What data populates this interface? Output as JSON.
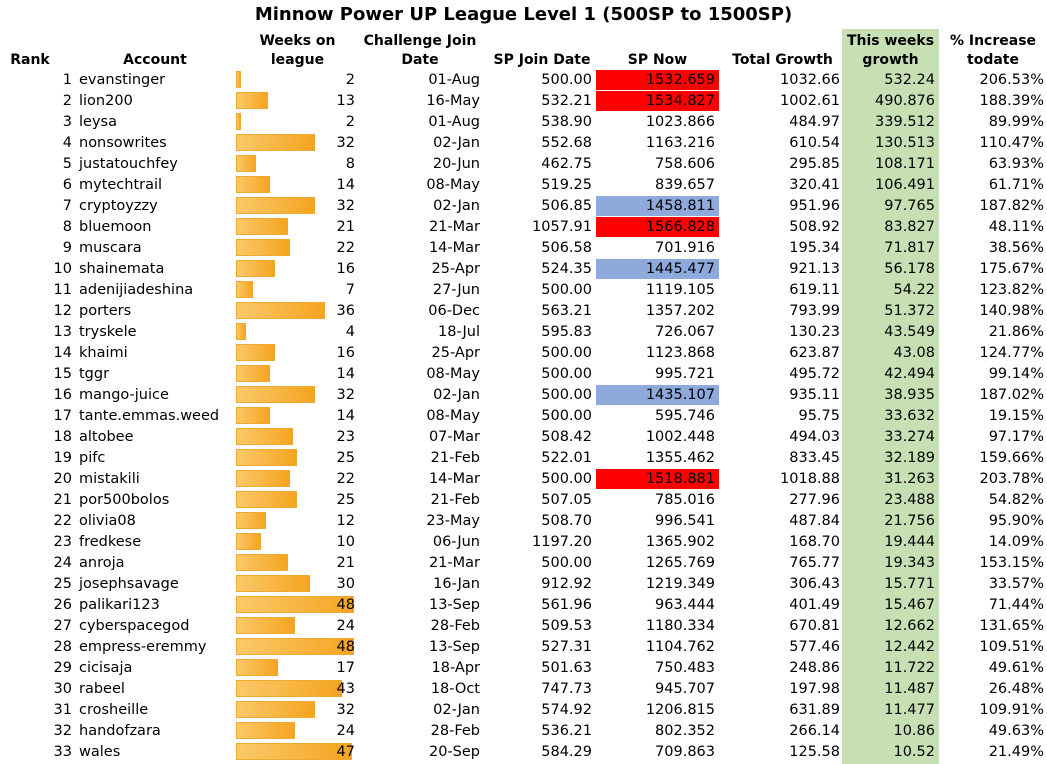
{
  "title": "Minnow Power UP League Level 1 (500SP to 1500SP)",
  "headers": {
    "rank": "Rank",
    "account": "Account",
    "weeks_on_league": [
      "Weeks on",
      "league"
    ],
    "challenge_join_date": [
      "Challenge Join",
      "Date"
    ],
    "sp_join_date": "SP Join Date",
    "sp_now": "SP Now",
    "total_growth": "Total Growth",
    "this_weeks_growth": [
      "This weeks",
      "growth"
    ],
    "pct_increase": [
      "% Increase",
      "todate"
    ]
  },
  "colors": {
    "highlight_red": "#ff0000",
    "highlight_blue": "#8ea9db",
    "growth_column": "#c6e0b4",
    "bar": "#f5a41f"
  },
  "max_weeks": 48,
  "rows": [
    {
      "rank": "1",
      "account": "evanstinger",
      "weeks": "2",
      "join_date": "01-Aug",
      "sp_join": "500.00",
      "sp_now": "1532.659",
      "sp_now_highlight": "red",
      "total_growth": "1032.66",
      "week_growth": "532.24",
      "pct": "206.53%"
    },
    {
      "rank": "2",
      "account": "lion200",
      "weeks": "13",
      "join_date": "16-May",
      "sp_join": "532.21",
      "sp_now": "1534.827",
      "sp_now_highlight": "red",
      "total_growth": "1002.61",
      "week_growth": "490.876",
      "pct": "188.39%"
    },
    {
      "rank": "3",
      "account": "leysa",
      "weeks": "2",
      "join_date": "01-Aug",
      "sp_join": "538.90",
      "sp_now": "1023.866",
      "sp_now_highlight": "",
      "total_growth": "484.97",
      "week_growth": "339.512",
      "pct": "89.99%"
    },
    {
      "rank": "4",
      "account": "nonsowrites",
      "weeks": "32",
      "join_date": "02-Jan",
      "sp_join": "552.68",
      "sp_now": "1163.216",
      "sp_now_highlight": "",
      "total_growth": "610.54",
      "week_growth": "130.513",
      "pct": "110.47%"
    },
    {
      "rank": "5",
      "account": "justatouchfey",
      "weeks": "8",
      "join_date": "20-Jun",
      "sp_join": "462.75",
      "sp_now": "758.606",
      "sp_now_highlight": "",
      "total_growth": "295.85",
      "week_growth": "108.171",
      "pct": "63.93%"
    },
    {
      "rank": "6",
      "account": "mytechtrail",
      "weeks": "14",
      "join_date": "08-May",
      "sp_join": "519.25",
      "sp_now": "839.657",
      "sp_now_highlight": "",
      "total_growth": "320.41",
      "week_growth": "106.491",
      "pct": "61.71%"
    },
    {
      "rank": "7",
      "account": "cryptoyzzy",
      "weeks": "32",
      "join_date": "02-Jan",
      "sp_join": "506.85",
      "sp_now": "1458.811",
      "sp_now_highlight": "blue",
      "total_growth": "951.96",
      "week_growth": "97.765",
      "pct": "187.82%"
    },
    {
      "rank": "8",
      "account": "bluemoon",
      "weeks": "21",
      "join_date": "21-Mar",
      "sp_join": "1057.91",
      "sp_now": "1566.828",
      "sp_now_highlight": "red",
      "total_growth": "508.92",
      "week_growth": "83.827",
      "pct": "48.11%"
    },
    {
      "rank": "9",
      "account": "muscara",
      "weeks": "22",
      "join_date": "14-Mar",
      "sp_join": "506.58",
      "sp_now": "701.916",
      "sp_now_highlight": "",
      "total_growth": "195.34",
      "week_growth": "71.817",
      "pct": "38.56%"
    },
    {
      "rank": "10",
      "account": "shainemata",
      "weeks": "16",
      "join_date": "25-Apr",
      "sp_join": "524.35",
      "sp_now": "1445.477",
      "sp_now_highlight": "blue",
      "total_growth": "921.13",
      "week_growth": "56.178",
      "pct": "175.67%"
    },
    {
      "rank": "11",
      "account": "adenijiadeshina",
      "weeks": "7",
      "join_date": "27-Jun",
      "sp_join": "500.00",
      "sp_now": "1119.105",
      "sp_now_highlight": "",
      "total_growth": "619.11",
      "week_growth": "54.22",
      "pct": "123.82%"
    },
    {
      "rank": "12",
      "account": "porters",
      "weeks": "36",
      "join_date": "06-Dec",
      "sp_join": "563.21",
      "sp_now": "1357.202",
      "sp_now_highlight": "",
      "total_growth": "793.99",
      "week_growth": "51.372",
      "pct": "140.98%"
    },
    {
      "rank": "13",
      "account": "tryskele",
      "weeks": "4",
      "join_date": "18-Jul",
      "sp_join": "595.83",
      "sp_now": "726.067",
      "sp_now_highlight": "",
      "total_growth": "130.23",
      "week_growth": "43.549",
      "pct": "21.86%"
    },
    {
      "rank": "14",
      "account": "khaimi",
      "weeks": "16",
      "join_date": "25-Apr",
      "sp_join": "500.00",
      "sp_now": "1123.868",
      "sp_now_highlight": "",
      "total_growth": "623.87",
      "week_growth": "43.08",
      "pct": "124.77%"
    },
    {
      "rank": "15",
      "account": "tggr",
      "weeks": "14",
      "join_date": "08-May",
      "sp_join": "500.00",
      "sp_now": "995.721",
      "sp_now_highlight": "",
      "total_growth": "495.72",
      "week_growth": "42.494",
      "pct": "99.14%"
    },
    {
      "rank": "16",
      "account": "mango-juice",
      "weeks": "32",
      "join_date": "02-Jan",
      "sp_join": "500.00",
      "sp_now": "1435.107",
      "sp_now_highlight": "blue",
      "total_growth": "935.11",
      "week_growth": "38.935",
      "pct": "187.02%"
    },
    {
      "rank": "17",
      "account": "tante.emmas.weed",
      "weeks": "14",
      "join_date": "08-May",
      "sp_join": "500.00",
      "sp_now": "595.746",
      "sp_now_highlight": "",
      "total_growth": "95.75",
      "week_growth": "33.632",
      "pct": "19.15%"
    },
    {
      "rank": "18",
      "account": "altobee",
      "weeks": "23",
      "join_date": "07-Mar",
      "sp_join": "508.42",
      "sp_now": "1002.448",
      "sp_now_highlight": "",
      "total_growth": "494.03",
      "week_growth": "33.274",
      "pct": "97.17%"
    },
    {
      "rank": "19",
      "account": "pifc",
      "weeks": "25",
      "join_date": "21-Feb",
      "sp_join": "522.01",
      "sp_now": "1355.462",
      "sp_now_highlight": "",
      "total_growth": "833.45",
      "week_growth": "32.189",
      "pct": "159.66%"
    },
    {
      "rank": "20",
      "account": "mistakili",
      "weeks": "22",
      "join_date": "14-Mar",
      "sp_join": "500.00",
      "sp_now": "1518.881",
      "sp_now_highlight": "red",
      "total_growth": "1018.88",
      "week_growth": "31.263",
      "pct": "203.78%"
    },
    {
      "rank": "21",
      "account": "por500bolos",
      "weeks": "25",
      "join_date": "21-Feb",
      "sp_join": "507.05",
      "sp_now": "785.016",
      "sp_now_highlight": "",
      "total_growth": "277.96",
      "week_growth": "23.488",
      "pct": "54.82%"
    },
    {
      "rank": "22",
      "account": "olivia08",
      "weeks": "12",
      "join_date": "23-May",
      "sp_join": "508.70",
      "sp_now": "996.541",
      "sp_now_highlight": "",
      "total_growth": "487.84",
      "week_growth": "21.756",
      "pct": "95.90%"
    },
    {
      "rank": "23",
      "account": "fredkese",
      "weeks": "10",
      "join_date": "06-Jun",
      "sp_join": "1197.20",
      "sp_now": "1365.902",
      "sp_now_highlight": "",
      "total_growth": "168.70",
      "week_growth": "19.444",
      "pct": "14.09%"
    },
    {
      "rank": "24",
      "account": "anroja",
      "weeks": "21",
      "join_date": "21-Mar",
      "sp_join": "500.00",
      "sp_now": "1265.769",
      "sp_now_highlight": "",
      "total_growth": "765.77",
      "week_growth": "19.343",
      "pct": "153.15%"
    },
    {
      "rank": "25",
      "account": "josephsavage",
      "weeks": "30",
      "join_date": "16-Jan",
      "sp_join": "912.92",
      "sp_now": "1219.349",
      "sp_now_highlight": "",
      "total_growth": "306.43",
      "week_growth": "15.771",
      "pct": "33.57%"
    },
    {
      "rank": "26",
      "account": "palikari123",
      "weeks": "48",
      "join_date": "13-Sep",
      "sp_join": "561.96",
      "sp_now": "963.444",
      "sp_now_highlight": "",
      "total_growth": "401.49",
      "week_growth": "15.467",
      "pct": "71.44%"
    },
    {
      "rank": "27",
      "account": "cyberspacegod",
      "weeks": "24",
      "join_date": "28-Feb",
      "sp_join": "509.53",
      "sp_now": "1180.334",
      "sp_now_highlight": "",
      "total_growth": "670.81",
      "week_growth": "12.662",
      "pct": "131.65%"
    },
    {
      "rank": "28",
      "account": "empress-eremmy",
      "weeks": "48",
      "join_date": "13-Sep",
      "sp_join": "527.31",
      "sp_now": "1104.762",
      "sp_now_highlight": "",
      "total_growth": "577.46",
      "week_growth": "12.442",
      "pct": "109.51%"
    },
    {
      "rank": "29",
      "account": "cicisaja",
      "weeks": "17",
      "join_date": "18-Apr",
      "sp_join": "501.63",
      "sp_now": "750.483",
      "sp_now_highlight": "",
      "total_growth": "248.86",
      "week_growth": "11.722",
      "pct": "49.61%"
    },
    {
      "rank": "30",
      "account": "rabeel",
      "weeks": "43",
      "join_date": "18-Oct",
      "sp_join": "747.73",
      "sp_now": "945.707",
      "sp_now_highlight": "",
      "total_growth": "197.98",
      "week_growth": "11.487",
      "pct": "26.48%"
    },
    {
      "rank": "31",
      "account": "crosheille",
      "weeks": "32",
      "join_date": "02-Jan",
      "sp_join": "574.92",
      "sp_now": "1206.815",
      "sp_now_highlight": "",
      "total_growth": "631.89",
      "week_growth": "11.477",
      "pct": "109.91%"
    },
    {
      "rank": "32",
      "account": "handofzara",
      "weeks": "24",
      "join_date": "28-Feb",
      "sp_join": "536.21",
      "sp_now": "802.352",
      "sp_now_highlight": "",
      "total_growth": "266.14",
      "week_growth": "10.86",
      "pct": "49.63%"
    },
    {
      "rank": "33",
      "account": "wales",
      "weeks": "47",
      "join_date": "20-Sep",
      "sp_join": "584.29",
      "sp_now": "709.863",
      "sp_now_highlight": "",
      "total_growth": "125.58",
      "week_growth": "10.52",
      "pct": "21.49%"
    }
  ]
}
